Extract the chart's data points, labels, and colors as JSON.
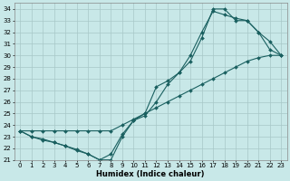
{
  "xlabel": "Humidex (Indice chaleur)",
  "bg_color": "#c8e8e8",
  "grid_color": "#a8c8c8",
  "line_color": "#1a6060",
  "xlim": [
    -0.5,
    23.5
  ],
  "ylim": [
    21,
    34.5
  ],
  "xticks": [
    0,
    1,
    2,
    3,
    4,
    5,
    6,
    7,
    8,
    9,
    10,
    11,
    12,
    13,
    14,
    15,
    16,
    17,
    18,
    19,
    20,
    21,
    22,
    23
  ],
  "yticks": [
    21,
    22,
    23,
    24,
    25,
    26,
    27,
    28,
    29,
    30,
    31,
    32,
    33,
    34
  ],
  "line1_x": [
    0,
    1,
    2,
    3,
    4,
    5,
    6,
    7,
    8,
    9,
    10,
    11,
    12,
    13,
    14,
    15,
    16,
    17,
    18,
    19,
    20,
    21,
    22,
    23
  ],
  "line1_y": [
    23.5,
    23.0,
    22.8,
    22.5,
    22.2,
    21.9,
    21.5,
    21.0,
    21.5,
    23.2,
    24.4,
    25.0,
    27.3,
    27.8,
    28.5,
    30.0,
    32.0,
    33.8,
    33.5,
    33.2,
    33.0,
    32.0,
    31.2,
    30.0
  ],
  "line2_x": [
    0,
    1,
    2,
    3,
    4,
    5,
    6,
    7,
    8,
    9,
    10,
    11,
    12,
    13,
    14,
    15,
    16,
    17,
    18,
    19,
    20,
    21,
    22,
    23
  ],
  "line2_y": [
    23.5,
    23.5,
    23.5,
    23.5,
    23.5,
    23.5,
    23.5,
    23.5,
    23.5,
    24.0,
    24.5,
    25.0,
    25.5,
    26.0,
    26.5,
    27.0,
    27.5,
    28.0,
    28.5,
    29.0,
    29.5,
    29.8,
    30.0,
    30.0
  ],
  "line3_x": [
    0,
    1,
    2,
    3,
    4,
    5,
    6,
    7,
    8,
    9,
    10,
    11,
    12,
    13,
    14,
    15,
    16,
    17,
    18,
    19,
    20,
    21,
    22,
    23
  ],
  "line3_y": [
    23.5,
    23.0,
    22.7,
    22.5,
    22.2,
    21.8,
    21.5,
    21.0,
    21.0,
    23.0,
    24.4,
    24.8,
    26.0,
    27.5,
    28.5,
    29.5,
    31.5,
    34.0,
    34.0,
    33.0,
    33.0,
    32.0,
    30.5,
    30.0
  ]
}
